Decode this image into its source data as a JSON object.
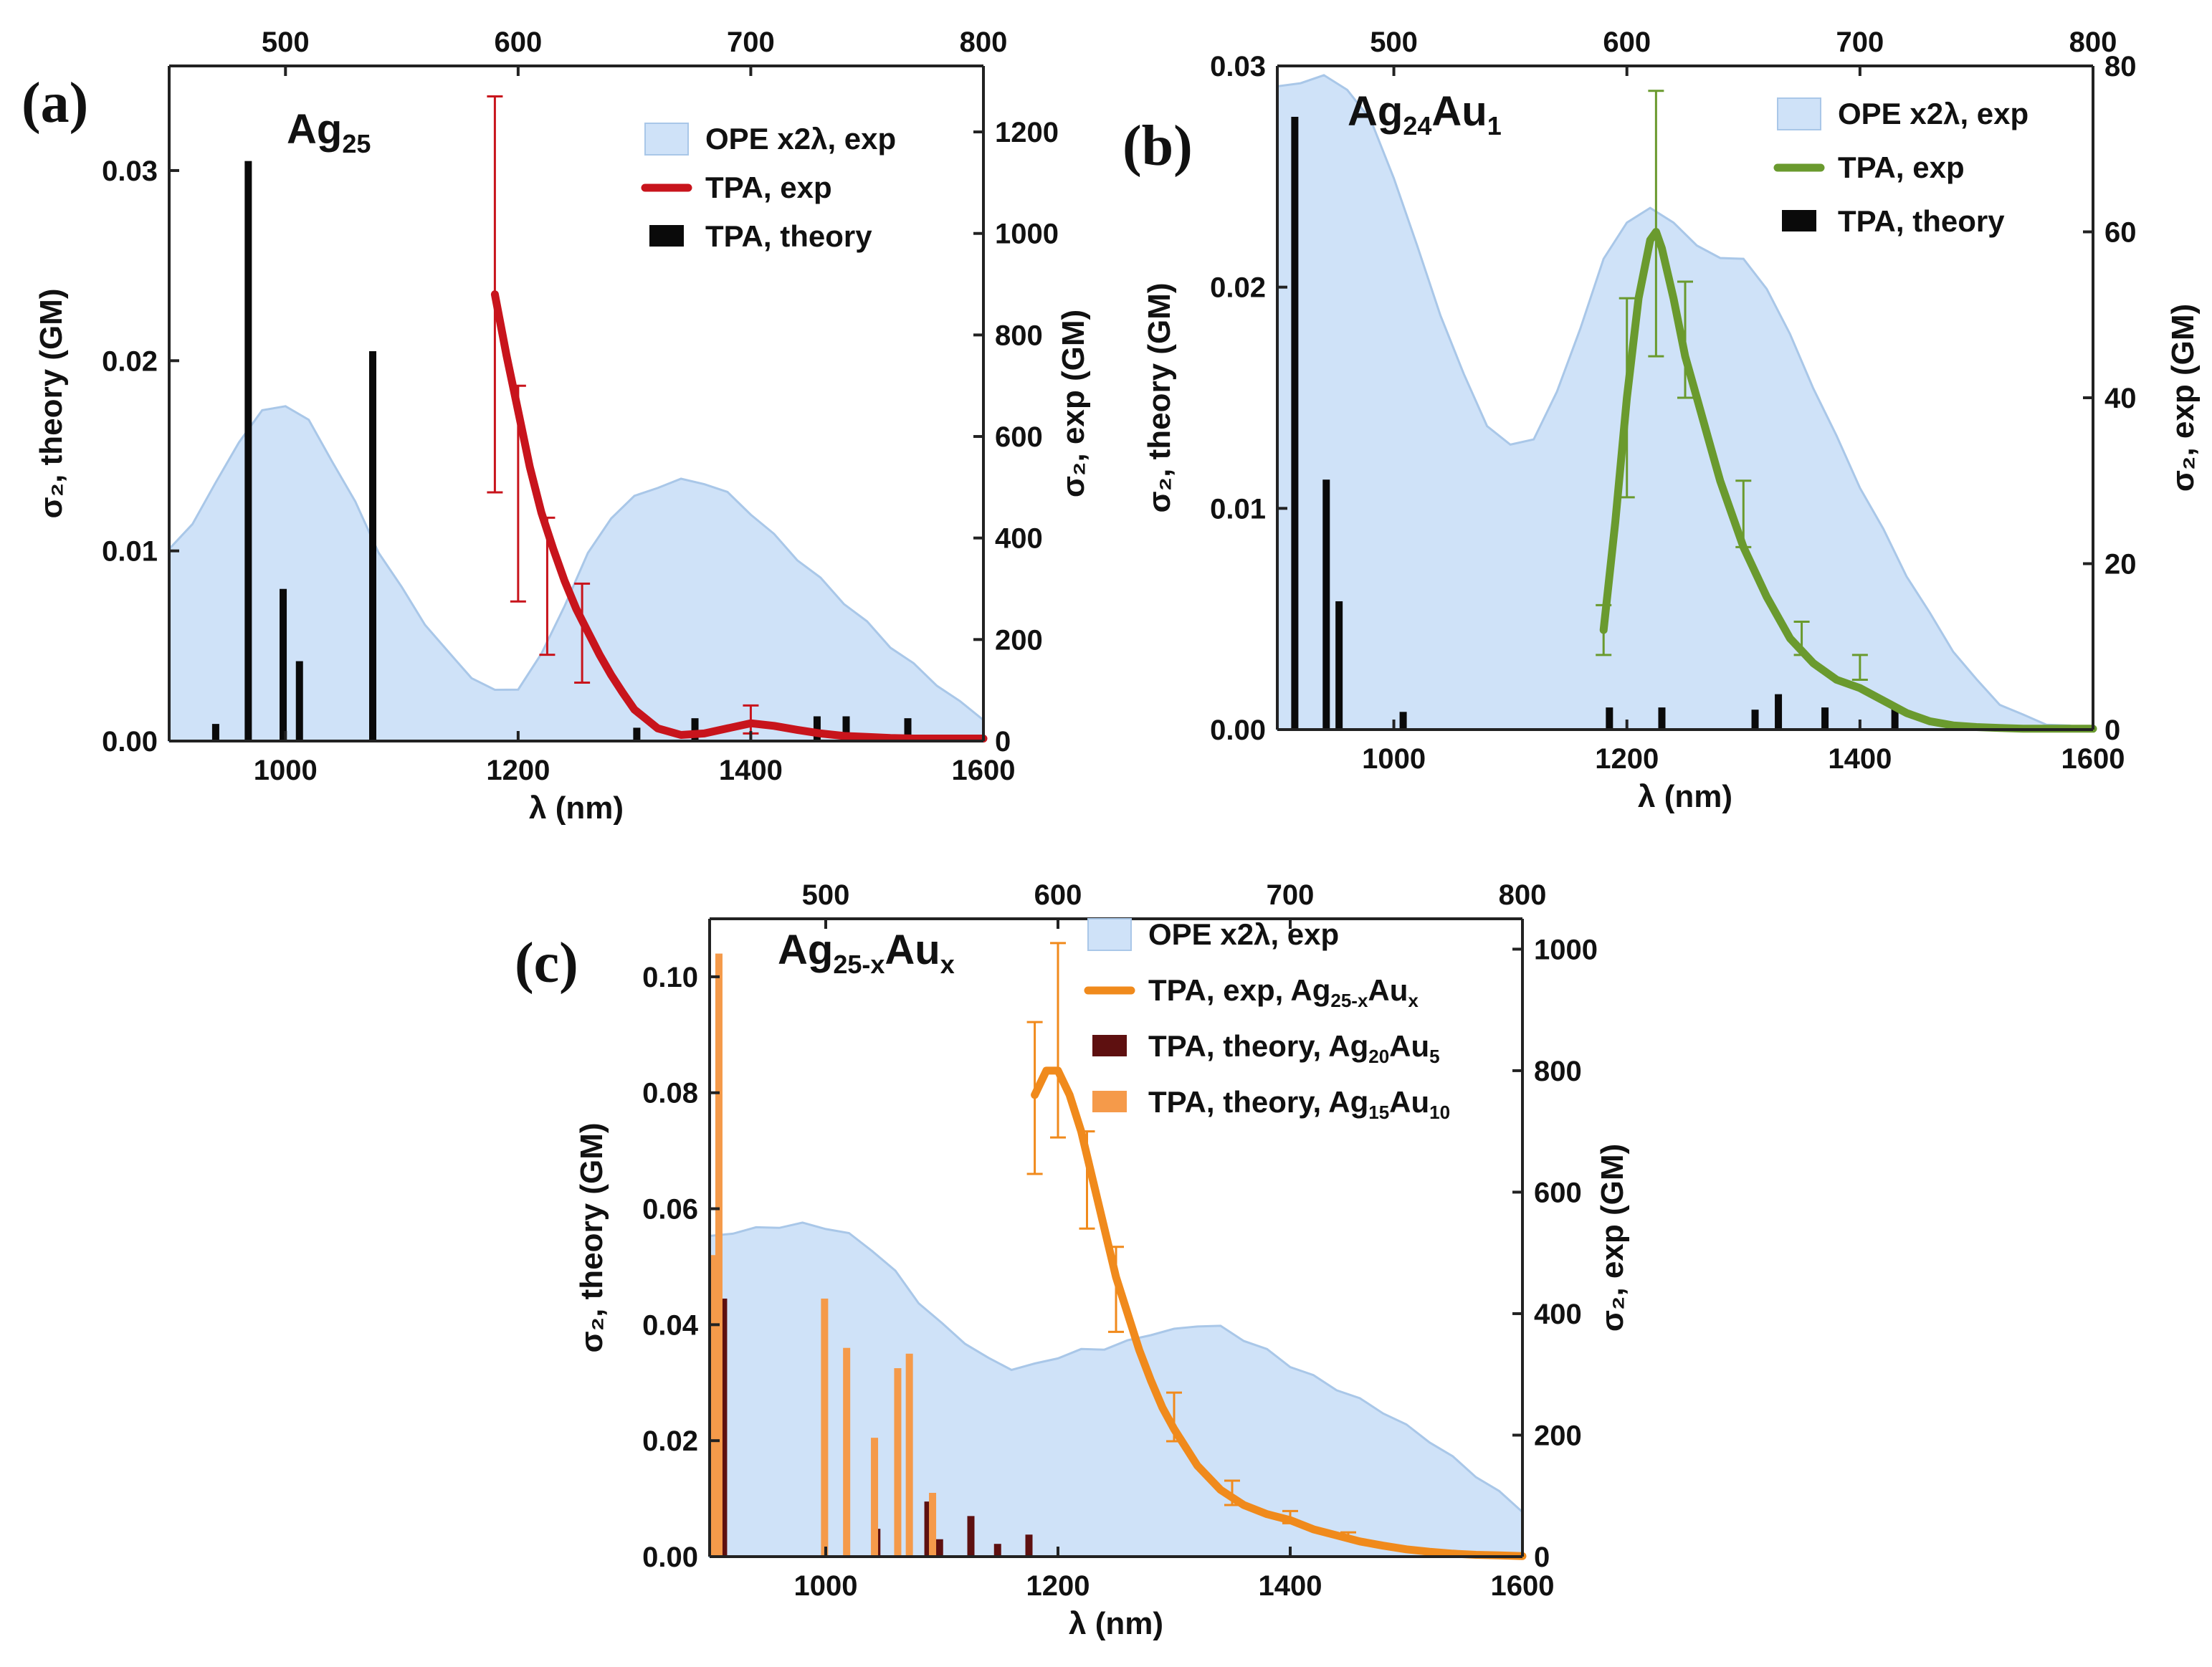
{
  "figure": {
    "colors": {
      "ope_fill": "#cfe2f8",
      "ope_stroke": "#a9c7e8",
      "axis": "#222222"
    }
  },
  "chart_data": [
    {
      "panel_label": "(a)",
      "sample_title": "Ag",
      "sample_title_sub": "25",
      "type": "bar",
      "xlabel": "λ (nm)",
      "xlim": [
        900,
        1600
      ],
      "x_ticks": [
        1000,
        1200,
        1400,
        1600
      ],
      "top_axis_ticks": [
        500,
        600,
        700,
        800
      ],
      "ylabel_left": "σ₂, theory (GM)",
      "ylabel_right": "σ₂, exp (GM)",
      "ylim_left": [
        0,
        0.0355
      ],
      "y_ticks_left": [
        "0.00",
        "0.01",
        "0.02",
        "0.03"
      ],
      "ylim_right": [
        0,
        1330
      ],
      "y_ticks_right": [
        0,
        200,
        400,
        600,
        800,
        1000,
        1200
      ],
      "legend": [
        "OPE x2λ, exp",
        "TPA, exp",
        "TPA, theory"
      ],
      "series": [
        {
          "name": "OPE x2λ, exp",
          "type": "area",
          "axis": "left",
          "color": "#cfe2f8",
          "x": [
            900,
            920,
            940,
            960,
            980,
            1000,
            1020,
            1040,
            1060,
            1080,
            1100,
            1120,
            1140,
            1160,
            1180,
            1200,
            1220,
            1240,
            1260,
            1280,
            1300,
            1320,
            1340,
            1360,
            1380,
            1400,
            1420,
            1440,
            1460,
            1480,
            1500,
            1520,
            1540,
            1560,
            1580,
            1600
          ],
          "y": [
            0.01,
            0.0115,
            0.0135,
            0.0158,
            0.0173,
            0.0177,
            0.0168,
            0.0148,
            0.0125,
            0.01,
            0.008,
            0.0062,
            0.0046,
            0.0034,
            0.0026,
            0.0028,
            0.0045,
            0.0072,
            0.0098,
            0.0118,
            0.0128,
            0.0134,
            0.0137,
            0.0136,
            0.013,
            0.012,
            0.0108,
            0.0096,
            0.0085,
            0.0073,
            0.0062,
            0.005,
            0.004,
            0.003,
            0.002,
            0.0012
          ]
        },
        {
          "name": "TPA, exp",
          "type": "line",
          "axis": "right",
          "color": "#c8141c",
          "x": [
            1180,
            1190,
            1200,
            1210,
            1220,
            1230,
            1240,
            1250,
            1260,
            1270,
            1280,
            1290,
            1300,
            1320,
            1340,
            1360,
            1380,
            1400,
            1420,
            1440,
            1460,
            1480,
            1500,
            1520,
            1540,
            1560,
            1580,
            1600
          ],
          "y": [
            880,
            760,
            650,
            540,
            450,
            380,
            315,
            260,
            215,
            170,
            130,
            95,
            62,
            25,
            12,
            15,
            25,
            35,
            30,
            22,
            15,
            10,
            8,
            6,
            5,
            5,
            5,
            5
          ],
          "error_bars": [
            {
              "x": 1180,
              "y": 880,
              "low": 490,
              "high": 1270
            },
            {
              "x": 1200,
              "y": 650,
              "low": 275,
              "high": 700
            },
            {
              "x": 1225,
              "y": 400,
              "low": 170,
              "high": 440
            },
            {
              "x": 1255,
              "y": 230,
              "low": 115,
              "high": 310
            },
            {
              "x": 1400,
              "y": 35,
              "low": 15,
              "high": 70
            }
          ]
        },
        {
          "name": "TPA, theory",
          "type": "bar",
          "axis": "left",
          "color": "#0a0a0a",
          "x": [
            940,
            968,
            998,
            1012,
            1075,
            1302,
            1352,
            1457,
            1482,
            1535
          ],
          "y": [
            0.0009,
            0.0305,
            0.008,
            0.0042,
            0.0205,
            0.0007,
            0.0012,
            0.0013,
            0.0013,
            0.0012
          ]
        }
      ]
    },
    {
      "panel_label": "(b)",
      "sample_title": "Ag",
      "sample_title_sub": "24",
      "sample_title_2": "Au",
      "sample_title_sub_2": "1",
      "type": "bar",
      "xlabel": "λ (nm)",
      "xlim": [
        900,
        1600
      ],
      "x_ticks": [
        1000,
        1200,
        1400,
        1600
      ],
      "top_axis_ticks": [
        500,
        600,
        700,
        800
      ],
      "ylabel_left": "σ₂, theory (GM)",
      "ylabel_right": "σ₂, exp (GM)",
      "ylim_left": [
        0,
        0.03
      ],
      "y_ticks_left": [
        "0.00",
        "0.01",
        "0.02",
        "0.03"
      ],
      "ylim_right": [
        0,
        80
      ],
      "y_ticks_right": [
        0,
        20,
        40,
        60,
        80
      ],
      "legend": [
        "OPE x2λ, exp",
        "TPA, exp",
        "TPA, theory"
      ],
      "series": [
        {
          "name": "OPE x2λ, exp",
          "type": "area",
          "axis": "left",
          "color": "#cfe2f8",
          "x": [
            900,
            920,
            940,
            960,
            980,
            1000,
            1020,
            1040,
            1060,
            1080,
            1100,
            1120,
            1140,
            1160,
            1180,
            1200,
            1220,
            1240,
            1260,
            1280,
            1300,
            1320,
            1340,
            1360,
            1380,
            1400,
            1420,
            1440,
            1460,
            1480,
            1500,
            1520,
            1540,
            1560,
            1580,
            1600
          ],
          "y": [
            0.029,
            0.0293,
            0.0295,
            0.029,
            0.0275,
            0.025,
            0.0218,
            0.0188,
            0.016,
            0.0138,
            0.0128,
            0.0132,
            0.0152,
            0.0182,
            0.0212,
            0.023,
            0.0235,
            0.023,
            0.0218,
            0.0214,
            0.0212,
            0.02,
            0.0178,
            0.0155,
            0.0132,
            0.011,
            0.009,
            0.007,
            0.0052,
            0.0036,
            0.0022,
            0.0012,
            0.0006,
            0.0003,
            0.0001,
            0.0
          ]
        },
        {
          "name": "TPA, exp",
          "type": "line",
          "axis": "right",
          "color": "#6a9a2e",
          "x": [
            1180,
            1190,
            1200,
            1210,
            1220,
            1225,
            1230,
            1240,
            1250,
            1260,
            1270,
            1280,
            1290,
            1300,
            1320,
            1340,
            1360,
            1380,
            1400,
            1420,
            1440,
            1460,
            1480,
            1500,
            1520,
            1540,
            1560,
            1580,
            1600
          ],
          "y": [
            12,
            25,
            40,
            52,
            59,
            60,
            58,
            52,
            45,
            40,
            35,
            30,
            26,
            22,
            16,
            11,
            8,
            6,
            5,
            3.5,
            2,
            1,
            0.5,
            0.3,
            0.2,
            0.1,
            0.1,
            0.1,
            0.1
          ],
          "error_bars": [
            {
              "x": 1180,
              "y": 12,
              "low": 9,
              "high": 15
            },
            {
              "x": 1200,
              "y": 40,
              "low": 28,
              "high": 52
            },
            {
              "x": 1225,
              "y": 60,
              "low": 45,
              "high": 77
            },
            {
              "x": 1250,
              "y": 48,
              "low": 40,
              "high": 54
            },
            {
              "x": 1300,
              "y": 26,
              "low": 22,
              "high": 30
            },
            {
              "x": 1350,
              "y": 11,
              "low": 9,
              "high": 13
            },
            {
              "x": 1400,
              "y": 7,
              "low": 6,
              "high": 9
            }
          ]
        },
        {
          "name": "TPA, theory",
          "type": "bar",
          "axis": "left",
          "color": "#0a0a0a",
          "x": [
            915,
            942,
            953,
            1008,
            1185,
            1230,
            1310,
            1330,
            1370,
            1430
          ],
          "y": [
            0.0277,
            0.0113,
            0.0058,
            0.0008,
            0.001,
            0.001,
            0.0009,
            0.0016,
            0.001,
            0.001
          ]
        }
      ]
    },
    {
      "panel_label": "(c)",
      "sample_title": "Ag",
      "sample_title_sub": "25-x",
      "sample_title_2": "Au",
      "sample_title_sub_2": "x",
      "type": "bar",
      "xlabel": "λ (nm)",
      "xlim": [
        900,
        1600
      ],
      "x_ticks": [
        1000,
        1200,
        1400,
        1600
      ],
      "top_axis_ticks": [
        500,
        600,
        700,
        800
      ],
      "ylabel_left": "σ₂, theory (GM)",
      "ylabel_right": "σ₂, exp (GM)",
      "ylim_left": [
        0,
        0.11
      ],
      "y_ticks_left": [
        "0.00",
        "0.02",
        "0.04",
        "0.06",
        "0.08",
        "0.10"
      ],
      "ylim_right": [
        0,
        1050
      ],
      "y_ticks_right": [
        0,
        200,
        400,
        600,
        800,
        1000
      ],
      "legend": [
        "OPE x2λ, exp",
        "TPA, exp, Ag25-xAux",
        "TPA, theory, Ag20Au5",
        "TPA, theory, Ag15Au10"
      ],
      "series": [
        {
          "name": "OPE x2λ, exp",
          "type": "area",
          "axis": "left",
          "color": "#cfe2f8",
          "x": [
            900,
            920,
            940,
            960,
            980,
            1000,
            1020,
            1040,
            1060,
            1080,
            1100,
            1120,
            1140,
            1160,
            1180,
            1200,
            1220,
            1240,
            1260,
            1280,
            1300,
            1320,
            1340,
            1360,
            1380,
            1400,
            1420,
            1440,
            1460,
            1480,
            1500,
            1520,
            1540,
            1560,
            1580,
            1600
          ],
          "y": [
            0.055,
            0.056,
            0.0565,
            0.057,
            0.0573,
            0.0568,
            0.0555,
            0.053,
            0.049,
            0.044,
            0.04,
            0.037,
            0.034,
            0.0325,
            0.033,
            0.0345,
            0.0355,
            0.036,
            0.037,
            0.0385,
            0.039,
            0.04,
            0.0395,
            0.0375,
            0.0355,
            0.033,
            0.031,
            0.029,
            0.027,
            0.025,
            0.0225,
            0.02,
            0.017,
            0.014,
            0.011,
            0.008
          ]
        },
        {
          "name": "TPA, exp, Ag25-xAux",
          "type": "line",
          "axis": "right",
          "color": "#f08a1c",
          "x": [
            1180,
            1190,
            1200,
            1210,
            1220,
            1230,
            1240,
            1250,
            1260,
            1270,
            1280,
            1290,
            1300,
            1320,
            1340,
            1360,
            1380,
            1400,
            1420,
            1440,
            1460,
            1480,
            1500,
            1520,
            1540,
            1560,
            1580,
            1600
          ],
          "y": [
            760,
            800,
            800,
            760,
            700,
            620,
            540,
            460,
            400,
            340,
            290,
            245,
            210,
            150,
            110,
            85,
            70,
            60,
            45,
            35,
            25,
            18,
            12,
            8,
            5,
            3,
            2,
            1
          ],
          "error_bars": [
            {
              "x": 1180,
              "y": 760,
              "low": 630,
              "high": 880
            },
            {
              "x": 1200,
              "y": 800,
              "low": 690,
              "high": 1010
            },
            {
              "x": 1225,
              "y": 620,
              "low": 540,
              "high": 700
            },
            {
              "x": 1250,
              "y": 460,
              "low": 370,
              "high": 510
            },
            {
              "x": 1300,
              "y": 230,
              "low": 190,
              "high": 270
            },
            {
              "x": 1350,
              "y": 105,
              "low": 85,
              "high": 125
            },
            {
              "x": 1400,
              "y": 65,
              "low": 55,
              "high": 75
            },
            {
              "x": 1450,
              "y": 35,
              "low": 30,
              "high": 40
            }
          ]
        },
        {
          "name": "TPA, theory, Ag20Au5",
          "type": "bar",
          "axis": "left",
          "color": "#5e1010",
          "x": [
            906,
            912,
            1044,
            1088,
            1098,
            1125,
            1148,
            1175
          ],
          "y": [
            0.033,
            0.0445,
            0.0048,
            0.0095,
            0.003,
            0.007,
            0.0022,
            0.0038
          ]
        },
        {
          "name": "TPA, theory, Ag15Au10",
          "type": "bar",
          "axis": "left",
          "color": "#f59a4a",
          "x": [
            903,
            908,
            999,
            1018,
            1042,
            1062,
            1072,
            1092
          ],
          "y": [
            0.052,
            0.104,
            0.0445,
            0.036,
            0.0205,
            0.0325,
            0.035,
            0.011
          ]
        }
      ]
    }
  ]
}
